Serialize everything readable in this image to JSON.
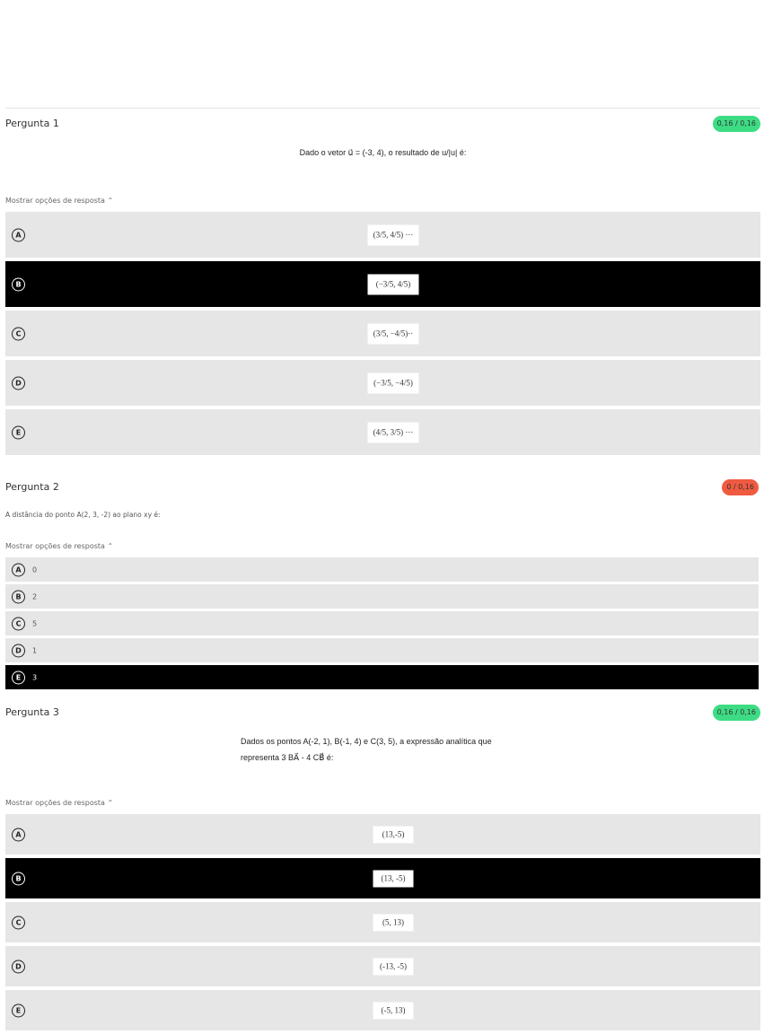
{
  "questions": [
    {
      "title": "Pergunta 1",
      "score": "0,16 / 0,16",
      "score_color": "#3ddc84",
      "text": "Dado o vetor u⃗ = (-3, 4), o resultado de u/|u| é:",
      "show_label": "Mostrar opções de resposta ⌃",
      "options": [
        {
          "letter": "A",
          "text": "(3/5, 4/5) ···",
          "selected": false
        },
        {
          "letter": "B",
          "text": "(−3/5, 4/5)",
          "selected": true
        },
        {
          "letter": "C",
          "text": "(3/5, −4/5)··",
          "selected": false
        },
        {
          "letter": "D",
          "text": "(−3/5, −4/5)",
          "selected": false
        },
        {
          "letter": "E",
          "text": "(4/5, 3/5) ···",
          "selected": false
        }
      ]
    },
    {
      "title": "Pergunta 2",
      "score": "0 / 0,16",
      "score_color": "#f05a40",
      "text": "A distância do ponto A(2, 3, -2) ao plano xy é:",
      "show_label": "Mostrar opções de resposta ⌃",
      "options": [
        {
          "letter": "A",
          "text": "0",
          "selected": false
        },
        {
          "letter": "B",
          "text": "2",
          "selected": false
        },
        {
          "letter": "C",
          "text": "5",
          "selected": false
        },
        {
          "letter": "D",
          "text": "1",
          "selected": false
        },
        {
          "letter": "E",
          "text": "3",
          "selected": true
        }
      ]
    },
    {
      "title": "Pergunta 3",
      "score": "0,16 / 0,16",
      "score_color": "#3ddc84",
      "text": "Dados os pontos A(-2, 1), B(-1, 4) e C(3, 5), a expressão analítica que",
      "text2": "representa 3 BA⃗ - 4 CB⃗ é:",
      "show_label": "Mostrar opções de resposta ⌃",
      "options": [
        {
          "letter": "A",
          "text": "(13,-5)",
          "selected": false
        },
        {
          "letter": "B",
          "text": "(13, -5)",
          "selected": true
        },
        {
          "letter": "C",
          "text": "(5, 13)",
          "selected": false
        },
        {
          "letter": "D",
          "text": "(-13, -5)",
          "selected": false
        },
        {
          "letter": "E",
          "text": "(-5, 13)",
          "selected": false
        }
      ]
    }
  ]
}
